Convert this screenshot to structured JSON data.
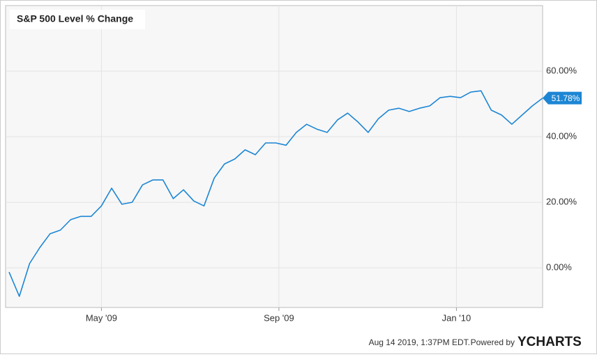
{
  "chart_data": {
    "type": "line",
    "title": "S&P 500 Level % Change",
    "footer": "Aug 14 2019, 1:37PM EDT.",
    "powered": "Powered by",
    "brand": "YCHARTS",
    "color": "#1c86d4",
    "grid": true,
    "xlim": [
      0,
      52
    ],
    "xticks": [
      {
        "value": 9,
        "label": "May '09"
      },
      {
        "value": 26.3,
        "label": "Sep '09"
      },
      {
        "value": 43.6,
        "label": "Jan '10"
      }
    ],
    "ylim": [
      -12.1,
      80
    ],
    "yticks": [
      {
        "value": 0,
        "label": "0.00%"
      },
      {
        "value": 20,
        "label": "20.00%"
      },
      {
        "value": 40,
        "label": "40.00%"
      },
      {
        "value": 60,
        "label": "60.00%"
      }
    ],
    "series": [
      {
        "name": "S&P 500 Level % Change",
        "color": "#1c86d4",
        "values": [
          -1.3,
          -8.7,
          1.3,
          6.2,
          10.4,
          11.5,
          14.7,
          15.7,
          15.7,
          18.9,
          24.3,
          19.4,
          20,
          25.3,
          26.8,
          26.8,
          21.1,
          23.8,
          20.4,
          18.9,
          27.4,
          31.7,
          33.2,
          36,
          34.5,
          38.1,
          38.1,
          37.4,
          41.3,
          43.8,
          42.3,
          41.3,
          45.1,
          47.2,
          44.5,
          41.3,
          45.5,
          48.1,
          48.7,
          47.7,
          48.7,
          49.4,
          51.9,
          52.3,
          51.9,
          53.6,
          54,
          48.1,
          46.6,
          43.8,
          46.6,
          49.4,
          51.78
        ],
        "value_labels": [
          null,
          null,
          null,
          null,
          null,
          null,
          null,
          null,
          null,
          null,
          null,
          null,
          null,
          null,
          null,
          null,
          null,
          null,
          null,
          null,
          null,
          null,
          null,
          null,
          null,
          null,
          null,
          null,
          null,
          null,
          null,
          null,
          null,
          null,
          null,
          null,
          null,
          null,
          null,
          null,
          null,
          null,
          null,
          null,
          null,
          null,
          null,
          null,
          null,
          null,
          null,
          null,
          "51.78%"
        ]
      }
    ]
  }
}
